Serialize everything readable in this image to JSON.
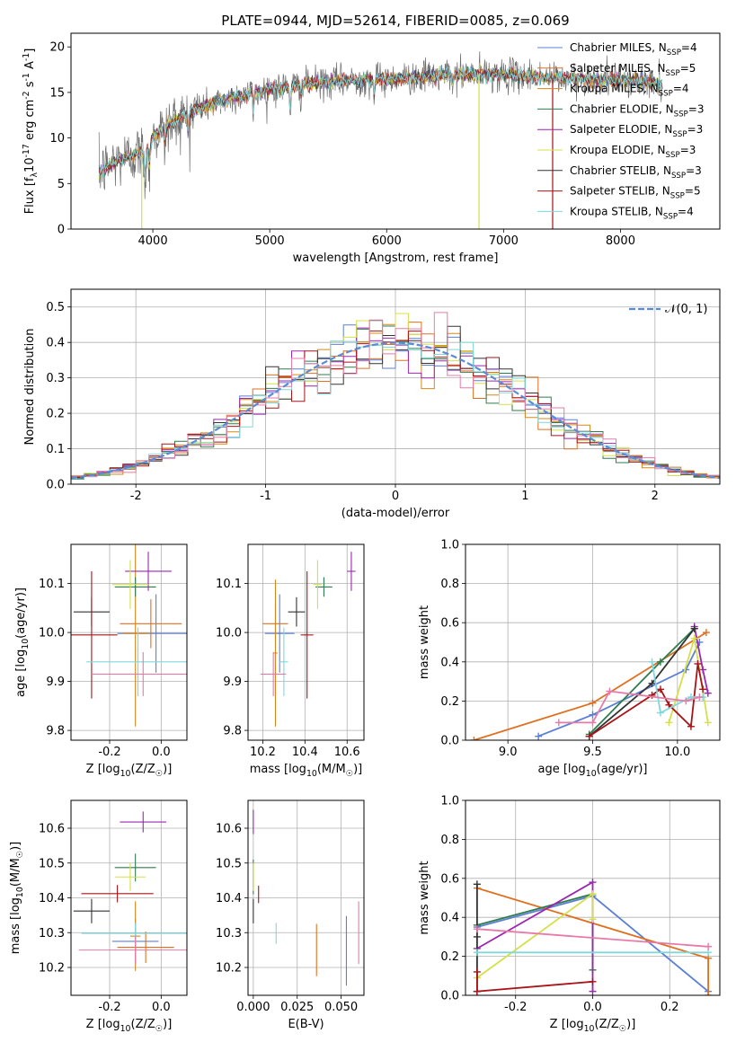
{
  "colors": [
    "#5b7fd6",
    "#e07020",
    "#d4881a",
    "#2e7d4f",
    "#9b27b0",
    "#d4e04a",
    "#333333",
    "#a81418",
    "#7fd8dc",
    "#e87aa8",
    "#444444"
  ],
  "legend_labels": [
    "Chabrier MILES, N$_{SSP}$=4",
    "Salpeter MILES, N$_{SSP}$=5",
    "Kroupa MILES, N$_{SSP}$=4",
    "Chabrier ELODIE, N$_{SSP}$=3",
    "Salpeter ELODIE, N$_{SSP}$=3",
    "Kroupa ELODIE, N$_{SSP}$=3",
    "Chabrier STELIB, N$_{SSP}$=3",
    "Salpeter STELIB, N$_{SSP}$=5",
    "Kroupa STELIB, N$_{SSP}$=4"
  ],
  "chart_data": [
    {
      "id": "spectrum",
      "type": "line",
      "title": "PLATE=0944, MJD=52614, FIBERID=0085, z=0.069",
      "xlabel": "wavelength [Angstrom, rest frame]",
      "ylabel": "Flux [f$_\\lambda$10$^{-17}$ erg cm$^{-2}$ s$^{-1}$ A$^{-1}$]",
      "xlim": [
        3300,
        8850
      ],
      "ylim": [
        0,
        21.5
      ],
      "xticks": [
        4000,
        5000,
        6000,
        7000,
        8000
      ],
      "yticks": [
        0,
        5,
        10,
        15,
        20
      ],
      "continuum": [
        [
          3540,
          6.2
        ],
        [
          3700,
          7.6
        ],
        [
          3850,
          8.2
        ],
        [
          3950,
          8.6
        ],
        [
          4000,
          10.2
        ],
        [
          4200,
          12.0
        ],
        [
          4400,
          13.3
        ],
        [
          4700,
          14.5
        ],
        [
          5000,
          15.4
        ],
        [
          5400,
          16.0
        ],
        [
          5800,
          16.4
        ],
        [
          6200,
          16.6
        ],
        [
          6600,
          17.0
        ],
        [
          7000,
          17.0
        ],
        [
          7400,
          16.6
        ],
        [
          7800,
          16.4
        ],
        [
          8200,
          16.2
        ],
        [
          8350,
          16.0
        ]
      ],
      "absorption_features": [
        [
          3934,
          3.5
        ],
        [
          3969,
          2.5
        ],
        [
          4101,
          2.0
        ],
        [
          4300,
          2.2
        ],
        [
          4861,
          2.0
        ],
        [
          5175,
          2.5
        ],
        [
          5270,
          1.5
        ],
        [
          5893,
          1.8
        ],
        [
          6563,
          1.5
        ],
        [
          8500,
          1.2
        ],
        [
          8542,
          1.3
        ],
        [
          8662,
          1.2
        ]
      ],
      "spikes": [
        [
          3905,
          0
        ],
        [
          6790,
          0
        ],
        [
          7420,
          0
        ]
      ]
    },
    {
      "id": "residuals",
      "type": "area",
      "xlabel": "(data-model)/error",
      "ylabel": "Normed distribution",
      "xlim": [
        -2.5,
        2.5
      ],
      "ylim": [
        0,
        0.55
      ],
      "xticks": [
        -2,
        -1,
        0,
        1,
        2
      ],
      "yticks": [
        0.0,
        0.1,
        0.2,
        0.3,
        0.4,
        0.5
      ],
      "gaussian_label": "$\\mathcal{N}$(0, 1)",
      "bin_width": 0.1
    },
    {
      "id": "age-vs-Z",
      "type": "scatter",
      "xlabel": "Z [log$_{10}$(Z/Z$_\\odot$)]",
      "ylabel": "age  [log$_{10}$(age/yr)]",
      "xlim": [
        -0.35,
        0.1
      ],
      "ylim": [
        9.78,
        10.18
      ],
      "xticks": [
        -0.2,
        0.0
      ],
      "yticks": [
        9.8,
        9.9,
        10.0,
        10.1
      ],
      "points": [
        {
          "x": -0.02,
          "y": 9.998,
          "xerr": 0.15,
          "yerr": 0.08,
          "c": 0
        },
        {
          "x": -0.04,
          "y": 10.018,
          "xerr": 0.12,
          "yerr": 0.05,
          "c": 1
        },
        {
          "x": -0.1,
          "y": 9.998,
          "xerr": 0.05,
          "yerr": 0.19,
          "c": 2
        },
        {
          "x": -0.1,
          "y": 10.093,
          "xerr": 0.08,
          "yerr": 0.02,
          "c": 3
        },
        {
          "x": -0.05,
          "y": 10.125,
          "xerr": 0.09,
          "yerr": 0.04,
          "c": 4
        },
        {
          "x": -0.12,
          "y": 10.098,
          "xerr": 0.07,
          "yerr": 0.05,
          "c": 5
        },
        {
          "x": -0.27,
          "y": 10.042,
          "xerr": 0.07,
          "yerr": 0.03,
          "c": 6
        },
        {
          "x": -0.27,
          "y": 9.995,
          "xerr": 0.1,
          "yerr": 0.13,
          "c": 7
        },
        {
          "x": -0.09,
          "y": 9.94,
          "xerr": 0.2,
          "yerr": 0.07,
          "c": 8
        },
        {
          "x": -0.07,
          "y": 9.915,
          "xerr": 0.2,
          "yerr": 0.045,
          "c": 9
        }
      ]
    },
    {
      "id": "age-vs-mass",
      "type": "scatter",
      "xlabel": "mass [log$_{10}$(M/M$_\\odot$)]",
      "ylabel": "",
      "xlim": [
        10.13,
        10.68
      ],
      "ylim": [
        9.78,
        10.18
      ],
      "xticks": [
        10.2,
        10.4,
        10.6
      ],
      "yticks": [
        9.8,
        9.9,
        10.0,
        10.1
      ],
      "points": [
        {
          "x": 10.28,
          "y": 9.998,
          "xerr": 0.07,
          "yerr": 0.08,
          "c": 0
        },
        {
          "x": 10.26,
          "y": 10.018,
          "xerr": 0.06,
          "yerr": 0.04,
          "c": 1
        },
        {
          "x": 10.26,
          "y": 9.958,
          "xerr": 0.01,
          "yerr": 0.15,
          "c": 2
        },
        {
          "x": 10.49,
          "y": 10.093,
          "xerr": 0.04,
          "yerr": 0.02,
          "c": 3
        },
        {
          "x": 10.62,
          "y": 10.125,
          "xerr": 0.02,
          "yerr": 0.04,
          "c": 4
        },
        {
          "x": 10.46,
          "y": 10.098,
          "xerr": 0.02,
          "yerr": 0.05,
          "c": 5
        },
        {
          "x": 10.36,
          "y": 10.042,
          "xerr": 0.04,
          "yerr": 0.03,
          "c": 6
        },
        {
          "x": 10.41,
          "y": 9.995,
          "xerr": 0.03,
          "yerr": 0.13,
          "c": 7
        },
        {
          "x": 10.3,
          "y": 9.94,
          "xerr": 0.02,
          "yerr": 0.07,
          "c": 8
        },
        {
          "x": 10.25,
          "y": 9.915,
          "xerr": 0.06,
          "yerr": 0.045,
          "c": 9
        }
      ]
    },
    {
      "id": "massweight-vs-age",
      "type": "line",
      "xlabel": "age  [log$_{10}$(age/yr)]",
      "ylabel": "mass weight",
      "xlim": [
        8.75,
        10.25
      ],
      "ylim": [
        0,
        1.0
      ],
      "xticks": [
        9.0,
        9.5,
        10.0
      ],
      "yticks": [
        0.0,
        0.2,
        0.4,
        0.6,
        0.8,
        1.0
      ],
      "series": [
        {
          "c": 0,
          "x": [
            9.18,
            9.5,
            10.05,
            10.13
          ],
          "y": [
            0.02,
            0.13,
            0.36,
            0.5
          ]
        },
        {
          "c": 1,
          "x": [
            8.8,
            9.5,
            10.17
          ],
          "y": [
            0.0,
            0.19,
            0.55
          ]
        },
        {
          "c": 3,
          "x": [
            9.48,
            9.9,
            10.1
          ],
          "y": [
            0.03,
            0.4,
            0.57
          ]
        },
        {
          "c": 4,
          "x": [
            10.1,
            10.15,
            10.18
          ],
          "y": [
            0.58,
            0.36,
            0.24
          ]
        },
        {
          "c": 5,
          "x": [
            9.95,
            10.1,
            10.18
          ],
          "y": [
            0.09,
            0.52,
            0.09
          ]
        },
        {
          "c": 6,
          "x": [
            9.48,
            9.85,
            10.1
          ],
          "y": [
            0.02,
            0.29,
            0.57
          ]
        },
        {
          "c": 7,
          "x": [
            9.48,
            9.85,
            9.9,
            9.95,
            10.08,
            10.12,
            10.15
          ],
          "y": [
            0.02,
            0.23,
            0.26,
            0.18,
            0.07,
            0.39,
            0.26
          ]
        },
        {
          "c": 8,
          "x": [
            9.85,
            9.9,
            10.08,
            10.15
          ],
          "y": [
            0.4,
            0.14,
            0.22,
            0.22
          ]
        },
        {
          "c": 9,
          "x": [
            9.3,
            9.5,
            9.6,
            10.05,
            10.13
          ],
          "y": [
            0.09,
            0.09,
            0.25,
            0.2,
            0.22
          ]
        }
      ]
    },
    {
      "id": "mass-vs-Z",
      "type": "scatter",
      "xlabel": "Z [log$_{10}$(Z/Z$_\\odot$)]",
      "ylabel": "mass [log$_{10}$(M/M$_\\odot$)]",
      "xlim": [
        -0.35,
        0.1
      ],
      "ylim": [
        10.12,
        10.68
      ],
      "xticks": [
        -0.2,
        0.0
      ],
      "yticks": [
        10.2,
        10.3,
        10.4,
        10.5,
        10.6
      ],
      "points": [
        {
          "x": -0.1,
          "y": 10.275,
          "xerr": 0.09,
          "yerr": 0.065,
          "c": 0
        },
        {
          "x": -0.06,
          "y": 10.258,
          "xerr": 0.11,
          "yerr": 0.045,
          "c": 1
        },
        {
          "x": -0.1,
          "y": 10.29,
          "xerr": 0.02,
          "yerr": 0.1,
          "c": 2
        },
        {
          "x": -0.1,
          "y": 10.487,
          "xerr": 0.08,
          "yerr": 0.04,
          "c": 3
        },
        {
          "x": -0.07,
          "y": 10.618,
          "xerr": 0.09,
          "yerr": 0.03,
          "c": 4
        },
        {
          "x": -0.12,
          "y": 10.46,
          "xerr": 0.06,
          "yerr": 0.04,
          "c": 5
        },
        {
          "x": -0.27,
          "y": 10.362,
          "xerr": 0.07,
          "yerr": 0.035,
          "c": 6
        },
        {
          "x": -0.17,
          "y": 10.412,
          "xerr": 0.14,
          "yerr": 0.025,
          "c": 7
        },
        {
          "x": -0.1,
          "y": 10.298,
          "xerr": 0.21,
          "yerr": 0.03,
          "c": 8
        },
        {
          "x": -0.1,
          "y": 10.25,
          "xerr": 0.22,
          "yerr": 0.04,
          "c": 9
        }
      ]
    },
    {
      "id": "mass-vs-EBV",
      "type": "scatter",
      "xlabel": "E(B-V)",
      "ylabel": "",
      "xlim": [
        -0.003,
        0.063
      ],
      "ylim": [
        10.12,
        10.68
      ],
      "xticks": [
        0.0,
        0.025,
        0.05
      ],
      "xticklabels": [
        "0.000",
        "0.025",
        "0.050"
      ],
      "yticks": [
        10.2,
        10.3,
        10.4,
        10.5,
        10.6
      ],
      "points": [
        {
          "x": 0.053,
          "y": 10.248,
          "xerr": 0,
          "yerr": 0.1,
          "c": 0
        },
        {
          "x": 0.036,
          "y": 10.25,
          "xerr": 0,
          "yerr": 0.075,
          "c": 1
        },
        {
          "x": 0.0,
          "y": 10.46,
          "xerr": 0,
          "yerr": 0.05,
          "c": 3
        },
        {
          "x": 0.0,
          "y": 10.618,
          "xerr": 0,
          "yerr": 0.035,
          "c": 4
        },
        {
          "x": 0.0,
          "y": 10.46,
          "xerr": 0,
          "yerr": 0.04,
          "c": 5
        },
        {
          "x": 0.0,
          "y": 10.362,
          "xerr": 0,
          "yerr": 0.035,
          "c": 6
        },
        {
          "x": 0.003,
          "y": 10.41,
          "xerr": 0,
          "yerr": 0.025,
          "c": 7
        },
        {
          "x": 0.013,
          "y": 10.298,
          "xerr": 0,
          "yerr": 0.03,
          "c": 8
        },
        {
          "x": 0.06,
          "y": 10.3,
          "xerr": 0,
          "yerr": 0.09,
          "c": 9
        }
      ]
    },
    {
      "id": "massweight-vs-Z",
      "type": "line",
      "xlabel": "Z [log$_{10}$(Z/Z$_\\odot$)]",
      "ylabel": "mass weight",
      "xlim": [
        -0.33,
        0.33
      ],
      "ylim": [
        0,
        1.0
      ],
      "xticks": [
        -0.2,
        0.0,
        0.2
      ],
      "yticks": [
        0.0,
        0.2,
        0.4,
        0.6,
        0.8,
        1.0
      ],
      "series": [
        {
          "c": 0,
          "x": [
            -0.3,
            0.0,
            0.3
          ],
          "y": [
            0.35,
            0.51,
            0.02
          ]
        },
        {
          "c": 1,
          "x": [
            -0.3,
            0.3,
            0.3
          ],
          "y": [
            0.55,
            0.19,
            0.0
          ]
        },
        {
          "c": 3,
          "x": [
            -0.3,
            0.0,
            0.0
          ],
          "y": [
            0.36,
            0.52,
            0.13
          ]
        },
        {
          "c": 4,
          "x": [
            -0.3,
            0.0,
            0.0
          ],
          "y": [
            0.24,
            0.58,
            0.02
          ]
        },
        {
          "c": 5,
          "x": [
            -0.3,
            0.0,
            0.0
          ],
          "y": [
            0.09,
            0.52,
            0.39
          ]
        },
        {
          "c": 6,
          "x": [
            -0.3,
            -0.3,
            -0.3
          ],
          "y": [
            0.57,
            0.3,
            0.02
          ]
        },
        {
          "c": 7,
          "x": [
            -0.3,
            -0.3,
            0.0
          ],
          "y": [
            0.12,
            0.02,
            0.07
          ]
        },
        {
          "c": 8,
          "x": [
            -0.3,
            0.3
          ],
          "y": [
            0.22,
            0.22
          ]
        },
        {
          "c": 9,
          "x": [
            -0.3,
            0.3
          ],
          "y": [
            0.34,
            0.25
          ]
        }
      ]
    }
  ]
}
